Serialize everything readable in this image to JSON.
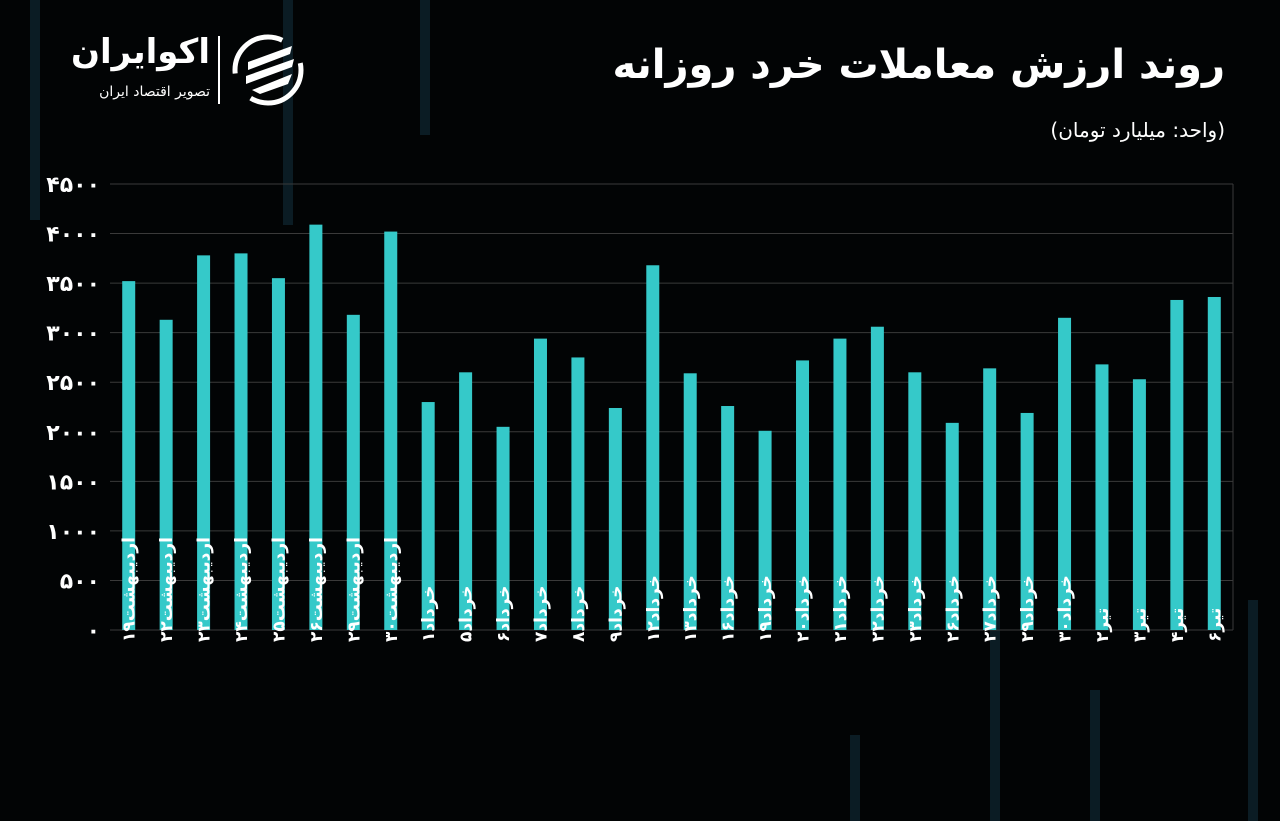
{
  "header": {
    "title": "روند ارزش معاملات خرد روزانه",
    "unit": "(واحد: میلیارد تومان)"
  },
  "logo": {
    "name": "اکوایران",
    "tagline": "تصویر اقتصاد ایران",
    "icon": "ecoiran-swirl-logo"
  },
  "colors": {
    "bar": "#35c9c9",
    "background": "#020405",
    "text": "#ffffff"
  },
  "chart_data": {
    "type": "bar",
    "title": "روند ارزش معاملات خرد روزانه",
    "ylabel": "",
    "xlabel": "",
    "ylim": [
      0,
      4500
    ],
    "yticks": [
      0,
      500,
      1000,
      1500,
      2000,
      2500,
      3000,
      3500,
      4000,
      4500
    ],
    "ytick_labels": [
      "۰",
      "۵۰۰",
      "۱۰۰۰",
      "۱۵۰۰",
      "۲۰۰۰",
      "۲۵۰۰",
      "۳۰۰۰",
      "۳۵۰۰",
      "۴۰۰۰",
      "۴۵۰۰"
    ],
    "grid": true,
    "categories": [
      "اردیبهشت۱۹",
      "اردیبهشت۲۲",
      "اردیبهشت۲۳",
      "اردیبهشت۲۴",
      "اردیبهشت۲۵",
      "اردیبهشت۲۶",
      "اردیبهشت۲۹",
      "اردیبهشت۳۰",
      "خرداد۱",
      "خرداد۵",
      "خرداد۶",
      "خرداد۷",
      "خرداد۸",
      "خرداد۹",
      "خرداد۱۲",
      "خرداد۱۳",
      "خرداد۱۶",
      "خرداد۱۹",
      "خرداد۲۰",
      "خرداد۲۱",
      "خرداد۲۲",
      "خرداد۲۳",
      "خرداد۲۶",
      "خرداد۲۷",
      "خرداد۲۹",
      "خرداد۳۰",
      "تیر۲",
      "تیر۳",
      "تیر۴",
      "تیر۶"
    ],
    "values": [
      3520,
      3130,
      3780,
      3800,
      3550,
      4090,
      3180,
      4020,
      2300,
      2600,
      2050,
      2940,
      2750,
      2240,
      3680,
      2590,
      2260,
      2010,
      2720,
      2940,
      3060,
      2600,
      2090,
      2640,
      2190,
      3150,
      2680,
      2530,
      3330,
      3360
    ]
  }
}
